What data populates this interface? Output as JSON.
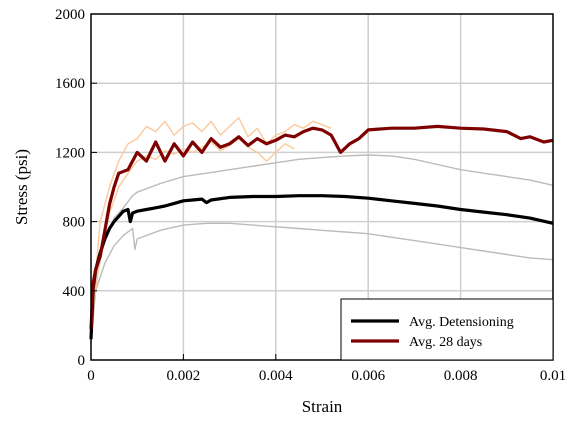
{
  "chart_data": {
    "type": "line",
    "xlabel": "Strain",
    "ylabel": "Stress (psi)",
    "xlim": [
      0,
      0.01
    ],
    "ylim": [
      0,
      2000
    ],
    "x_ticks": [
      "0",
      "0.002",
      "0.004",
      "0.006",
      "0.008",
      "0.01"
    ],
    "y_ticks": [
      "0",
      "400",
      "800",
      "1200",
      "1600",
      "2000"
    ],
    "grid": true,
    "legend_position": "bottom-right",
    "series": [
      {
        "name": "Avg. Detensioning",
        "color": "#000000",
        "legend": true,
        "x": [
          0,
          5e-05,
          0.0001,
          0.0002,
          0.0003,
          0.0004,
          0.0005,
          0.0006,
          0.0007,
          0.0008,
          0.00085,
          0.0009,
          0.001,
          0.0012,
          0.0014,
          0.0016,
          0.0018,
          0.002,
          0.0022,
          0.0024,
          0.0025,
          0.0026,
          0.003,
          0.0035,
          0.004,
          0.0045,
          0.005,
          0.0055,
          0.006,
          0.0065,
          0.007,
          0.0075,
          0.008,
          0.0085,
          0.009,
          0.0095,
          0.01
        ],
        "y": [
          120,
          420,
          520,
          620,
          700,
          760,
          800,
          830,
          860,
          870,
          800,
          850,
          860,
          870,
          880,
          890,
          905,
          920,
          925,
          930,
          910,
          925,
          940,
          945,
          945,
          950,
          950,
          945,
          935,
          920,
          905,
          890,
          870,
          855,
          840,
          820,
          790
        ]
      },
      {
        "name": "Avg. 28 days",
        "color": "#7f0000",
        "legend": true,
        "x": [
          0,
          5e-05,
          0.0001,
          0.0002,
          0.0003,
          0.0004,
          0.0005,
          0.0006,
          0.0008,
          0.001,
          0.0012,
          0.0014,
          0.0016,
          0.0018,
          0.002,
          0.0022,
          0.0024,
          0.0026,
          0.0028,
          0.003,
          0.0032,
          0.0034,
          0.0036,
          0.0038,
          0.004,
          0.0042,
          0.0044,
          0.0046,
          0.0048,
          0.005,
          0.0052,
          0.0054,
          0.0056,
          0.0058,
          0.006,
          0.0065,
          0.007,
          0.0075,
          0.008,
          0.0085,
          0.009,
          0.0093,
          0.0095,
          0.0098,
          0.01
        ],
        "y": [
          180,
          450,
          520,
          600,
          750,
          900,
          1000,
          1080,
          1100,
          1200,
          1150,
          1260,
          1150,
          1250,
          1180,
          1260,
          1200,
          1280,
          1230,
          1250,
          1290,
          1240,
          1280,
          1250,
          1270,
          1300,
          1290,
          1320,
          1340,
          1330,
          1300,
          1200,
          1250,
          1280,
          1330,
          1340,
          1340,
          1350,
          1340,
          1335,
          1320,
          1280,
          1290,
          1260,
          1270
        ]
      },
      {
        "name": "",
        "color": "#bbbbbb",
        "legend": false,
        "x": [
          0,
          0.0001,
          0.0003,
          0.0005,
          0.0007,
          0.0009,
          0.001,
          0.0015,
          0.002,
          0.0025,
          0.003,
          0.0035,
          0.004,
          0.0045,
          0.005,
          0.0055,
          0.006,
          0.0065,
          0.007,
          0.0075,
          0.008,
          0.0085,
          0.009,
          0.0095,
          0.01
        ],
        "y": [
          100,
          450,
          700,
          820,
          880,
          950,
          970,
          1020,
          1060,
          1080,
          1100,
          1120,
          1140,
          1160,
          1170,
          1180,
          1185,
          1180,
          1160,
          1130,
          1100,
          1080,
          1060,
          1040,
          1010
        ]
      },
      {
        "name": "",
        "color": "#bbbbbb",
        "legend": false,
        "x": [
          0,
          0.0001,
          0.0003,
          0.0005,
          0.0007,
          0.0009,
          0.00095,
          0.001,
          0.0015,
          0.002,
          0.0025,
          0.003,
          0.0035,
          0.004,
          0.0045,
          0.005,
          0.0055,
          0.006,
          0.0065,
          0.007,
          0.0075,
          0.008,
          0.0085,
          0.009,
          0.0095,
          0.01
        ],
        "y": [
          100,
          400,
          560,
          660,
          720,
          760,
          640,
          700,
          750,
          780,
          790,
          790,
          780,
          770,
          760,
          750,
          740,
          730,
          710,
          690,
          670,
          650,
          630,
          610,
          590,
          580
        ]
      },
      {
        "name": "",
        "color": "#fbc99b",
        "legend": false,
        "x": [
          0,
          0.0002,
          0.0004,
          0.0006,
          0.0008,
          0.001,
          0.0012,
          0.0014,
          0.0016,
          0.0018,
          0.002,
          0.0022,
          0.0024,
          0.0026,
          0.0028,
          0.003,
          0.0032,
          0.0034,
          0.0036,
          0.0038,
          0.004,
          0.0042,
          0.0044,
          0.0046,
          0.0048,
          0.005,
          0.0052
        ],
        "y": [
          200,
          800,
          1000,
          1150,
          1250,
          1280,
          1350,
          1320,
          1380,
          1300,
          1350,
          1370,
          1320,
          1380,
          1300,
          1350,
          1400,
          1290,
          1340,
          1250,
          1300,
          1320,
          1360,
          1340,
          1380,
          1360,
          1340
        ]
      },
      {
        "name": "",
        "color": "#fbc99b",
        "legend": false,
        "x": [
          0,
          0.0002,
          0.0004,
          0.0006,
          0.0008,
          0.001,
          0.0012,
          0.0014,
          0.0016,
          0.0018,
          0.002,
          0.0022,
          0.0024,
          0.0026,
          0.0028,
          0.003,
          0.0032,
          0.0034,
          0.0036,
          0.0038,
          0.004,
          0.0042,
          0.0044
        ],
        "y": [
          200,
          600,
          850,
          1000,
          1080,
          1150,
          1180,
          1160,
          1210,
          1190,
          1220,
          1200,
          1230,
          1260,
          1210,
          1240,
          1280,
          1230,
          1200,
          1150,
          1200,
          1250,
          1220
        ]
      }
    ]
  }
}
